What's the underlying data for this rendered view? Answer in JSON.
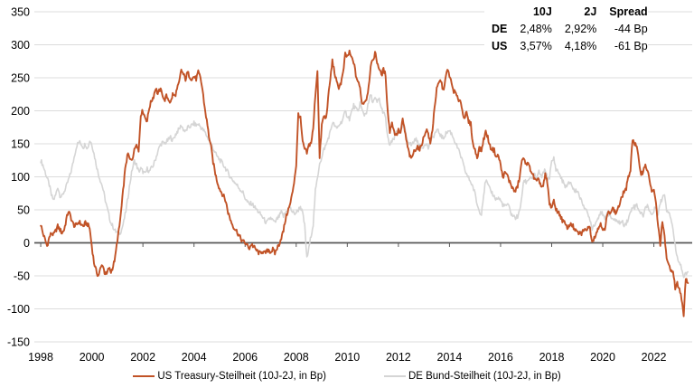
{
  "table": {
    "corner": "",
    "columns": [
      "10J",
      "2J",
      "Spread"
    ],
    "rows": [
      {
        "label": "DE",
        "values": [
          "2,48%",
          "2,92%",
          "-44 Bp"
        ]
      },
      {
        "label": "US",
        "values": [
          "3,57%",
          "4,18%",
          "-61 Bp"
        ]
      }
    ]
  },
  "legend": [
    {
      "label": "US Treasury-Steilheit (10J-2J, in Bp)",
      "color": "#C15327"
    },
    {
      "label": "DE Bund-Steilheit (10J-2J, in Bp)",
      "color": "#D5D5D5"
    }
  ],
  "colors": {
    "grid": "#DCDCDC",
    "zero_axis": "#595959",
    "text": "#000000",
    "us_line": "#C15327",
    "de_line": "#D5D5D5"
  },
  "chart_data": {
    "type": "line",
    "title": "",
    "xlabel": "",
    "ylabel": "",
    "ylim": [
      -150,
      350
    ],
    "xlim": [
      1997.75,
      2023.5
    ],
    "y_ticks": [
      350,
      300,
      250,
      200,
      150,
      100,
      50,
      0,
      -50,
      -100,
      -150
    ],
    "x_ticks": [
      1998,
      2000,
      2002,
      2004,
      2006,
      2008,
      2010,
      2012,
      2014,
      2016,
      2018,
      2020,
      2022
    ],
    "grid": "horizontal",
    "legend_position": "bottom",
    "x_start": 1998.0,
    "x_step_years": 0.0833333,
    "unit": "Bp",
    "series": [
      {
        "id": "us-treasury",
        "name": "US Treasury-Steilheit (10J-2J, in Bp)",
        "color": "#C15327",
        "width": 1.9,
        "values": [
          28,
          15,
          5,
          -5,
          8,
          15,
          12,
          18,
          25,
          20,
          15,
          20,
          35,
          48,
          40,
          30,
          25,
          28,
          32,
          28,
          25,
          30,
          28,
          22,
          -5,
          -30,
          -42,
          -50,
          -40,
          -32,
          -45,
          -48,
          -38,
          -44,
          -35,
          -22,
          5,
          25,
          55,
          90,
          120,
          135,
          125,
          128,
          140,
          152,
          138,
          195,
          200,
          190,
          185,
          205,
          215,
          222,
          235,
          225,
          232,
          228,
          215,
          222,
          218,
          212,
          225,
          222,
          232,
          242,
          262,
          255,
          248,
          258,
          252,
          248,
          252,
          248,
          258,
          250,
          232,
          205,
          185,
          162,
          145,
          122,
          105,
          92,
          82,
          76,
          70,
          62,
          46,
          36,
          28,
          22,
          18,
          12,
          6,
          2,
          0,
          -4,
          -8,
          -2,
          -6,
          -10,
          -14,
          -16,
          -12,
          -16,
          -14,
          -10,
          -14,
          -10,
          -16,
          -8,
          -2,
          8,
          18,
          36,
          48,
          56,
          72,
          92,
          118,
          196,
          188,
          152,
          142,
          136,
          148,
          152,
          172,
          225,
          262,
          128,
          178,
          192,
          188,
          218,
          248,
          276,
          258,
          242,
          236,
          242,
          256,
          285,
          282,
          288,
          280,
          274,
          254,
          244,
          234,
          210,
          214,
          218,
          236,
          270,
          274,
          289,
          274,
          264,
          254,
          262,
          254,
          198,
          168,
          183,
          168,
          163,
          170,
          166,
          186,
          170,
          150,
          136,
          126,
          136,
          142,
          146,
          140,
          151,
          160,
          172,
          166,
          150,
          172,
          206,
          232,
          242,
          246,
          230,
          246,
          262,
          254,
          240,
          230,
          226,
          216,
          218,
          200,
          190,
          196,
          183,
          180,
          150,
          140,
          130,
          143,
          140,
          156,
          168,
          160,
          146,
          142,
          140,
          130,
          132,
          118,
          100,
          105,
          104,
          94,
          88,
          80,
          78,
          86,
          100,
          126,
          125,
          122,
          118,
          112,
          104,
          96,
          92,
          96,
          86,
          85,
          103,
          90,
          58,
          55,
          62,
          52,
          46,
          42,
          34,
          30,
          24,
          24,
          30,
          25,
          18,
          16,
          14,
          14,
          20,
          18,
          25,
          22,
          3,
          8,
          16,
          22,
          30,
          22,
          18,
          42,
          46,
          50,
          52,
          44,
          52,
          58,
          70,
          78,
          82,
          98,
          112,
          158,
          150,
          145,
          122,
          105,
          108,
          120,
          108,
          95,
          78,
          78,
          60,
          25,
          -2,
          32,
          8,
          -22,
          -35,
          -44,
          -40,
          -70,
          -62,
          -70,
          -84,
          -108,
          -52,
          -61
        ]
      },
      {
        "id": "de-bund",
        "name": "DE Bund-Steilheit (10J-2J, in Bp)",
        "color": "#D5D5D5",
        "width": 1.6,
        "values": [
          125,
          118,
          108,
          98,
          88,
          72,
          65,
          72,
          85,
          72,
          70,
          78,
          85,
          95,
          105,
          118,
          135,
          148,
          153,
          150,
          145,
          150,
          143,
          155,
          150,
          135,
          120,
          105,
          95,
          85,
          70,
          55,
          42,
          30,
          24,
          18,
          15,
          14,
          20,
          32,
          48,
          70,
          92,
          112,
          124,
          118,
          108,
          112,
          108,
          104,
          112,
          108,
          113,
          118,
          128,
          138,
          147,
          152,
          150,
          153,
          156,
          160,
          155,
          162,
          168,
          172,
          178,
          172,
          168,
          174,
          176,
          178,
          181,
          178,
          180,
          176,
          172,
          168,
          162,
          156,
          150,
          143,
          136,
          130,
          126,
          122,
          117,
          112,
          106,
          100,
          96,
          92,
          88,
          84,
          80,
          76,
          68,
          62,
          58,
          60,
          56,
          52,
          48,
          44,
          40,
          35,
          30,
          34,
          38,
          34,
          30,
          36,
          40,
          46,
          40,
          46,
          50,
          54,
          48,
          44,
          46,
          50,
          55,
          45,
          26,
          -24,
          -8,
          12,
          28,
          78,
          98,
          122,
          128,
          142,
          148,
          158,
          168,
          182,
          178,
          172,
          178,
          182,
          188,
          198,
          193,
          188,
          198,
          208,
          203,
          198,
          212,
          200,
          194,
          198,
          212,
          225,
          213,
          218,
          213,
          218,
          203,
          198,
          188,
          158,
          148,
          153,
          158,
          168,
          173,
          168,
          178,
          172,
          158,
          152,
          148,
          152,
          158,
          152,
          148,
          143,
          148,
          152,
          143,
          152,
          158,
          165,
          170,
          168,
          162,
          158,
          164,
          168,
          170,
          165,
          158,
          150,
          142,
          134,
          124,
          112,
          104,
          98,
          92,
          85,
          74,
          58,
          48,
          45,
          72,
          95,
          88,
          80,
          76,
          70,
          66,
          68,
          64,
          58,
          55,
          58,
          54,
          44,
          40,
          38,
          40,
          48,
          72,
          95,
          92,
          96,
          100,
          98,
          102,
          96,
          108,
          100,
          104,
          112,
          96,
          100,
          122,
          128,
          112,
          108,
          102,
          94,
          88,
          84,
          90,
          92,
          82,
          78,
          80,
          72,
          62,
          58,
          50,
          42,
          36,
          22,
          28,
          32,
          40,
          48,
          42,
          34,
          48,
          42,
          38,
          36,
          32,
          34,
          30,
          32,
          28,
          30,
          36,
          46,
          56,
          54,
          58,
          50,
          44,
          42,
          52,
          58,
          48,
          42,
          48,
          56,
          45,
          60,
          68,
          75,
          50,
          48,
          38,
          20,
          -5,
          -22,
          -28,
          -38,
          -52,
          -48,
          -44
        ]
      }
    ]
  }
}
